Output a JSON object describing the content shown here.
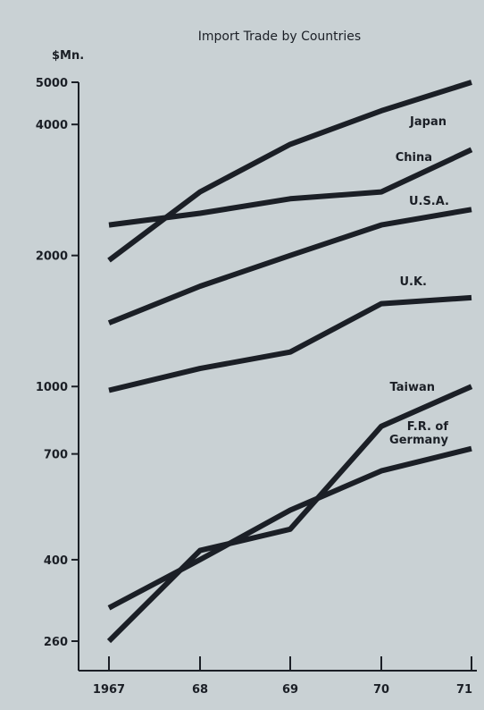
{
  "chart_data": {
    "type": "line",
    "title": "Import Trade by Countries",
    "ylabel": "$Mn.",
    "xlabel": "",
    "y_scale": "log",
    "ylim": [
      260,
      5000
    ],
    "x": [
      "1967",
      "68",
      "69",
      "70",
      "71"
    ],
    "y_ticks": [
      260,
      400,
      700,
      1000,
      2000,
      4000,
      5000
    ],
    "grid": false,
    "line_color": "#1b1f26",
    "background_color": "#c9d1d4",
    "series": [
      {
        "name": "Japan",
        "label": "Japan",
        "values": [
          1950,
          2800,
          3600,
          4300,
          5000
        ]
      },
      {
        "name": "China",
        "label": "China",
        "values": [
          2350,
          2500,
          2700,
          2800,
          3500
        ]
      },
      {
        "name": "U.S.A.",
        "label": "U.S.A.",
        "values": [
          1400,
          1700,
          2000,
          2350,
          2550
        ]
      },
      {
        "name": "U.K.",
        "label": "U.K.",
        "values": [
          980,
          1100,
          1200,
          1550,
          1600
        ]
      },
      {
        "name": "Taiwan",
        "label": "Taiwan",
        "values": [
          260,
          420,
          470,
          810,
          1000
        ]
      },
      {
        "name": "F.R. of Germany",
        "label": [
          "F.R. of",
          "Germany"
        ],
        "values": [
          310,
          400,
          520,
          640,
          720
        ]
      }
    ]
  }
}
